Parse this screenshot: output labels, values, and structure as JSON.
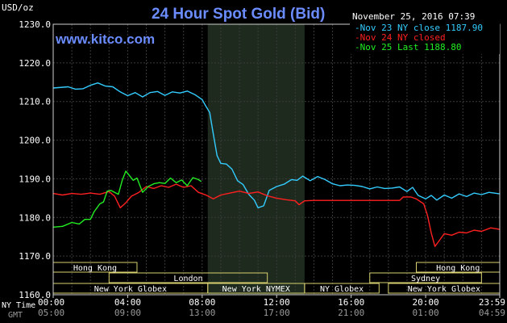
{
  "chart_data": {
    "type": "line",
    "title": "24 Hour Spot Gold (Bid)",
    "watermark": "www.kitco.com",
    "unit_label": "USD/oz",
    "timestamp": "November 25, 2016 07:39",
    "ylim": [
      1160,
      1230
    ],
    "yticks": [
      1160,
      1170,
      1180,
      1190,
      1200,
      1210,
      1220,
      1230
    ],
    "ytick_labels": [
      "1160.0",
      "1170.0",
      "1180.0",
      "1190.0",
      "1200.0",
      "1210.0",
      "1220.0",
      "1230.0"
    ],
    "x_range_hours": [
      0,
      23.98
    ],
    "x_tick_labels_ny": [
      "00:00",
      "04:00",
      "08:00",
      "12:00",
      "16:00",
      "20:00",
      "23:59"
    ],
    "x_tick_labels_gmt": [
      "05:00",
      "09:00",
      "13:00",
      "17:00",
      "21:00",
      "01:00",
      "04:59"
    ],
    "row_label_ny": "NY Time",
    "row_label_gmt": "GMT",
    "grid": true,
    "legend_position": "top-right",
    "shaded_session": [
      8.3,
      13.5
    ],
    "sessions": [
      {
        "label": "Hong Kong",
        "row": 0,
        "start": 0,
        "end": 4.5
      },
      {
        "label": "Hong Kong",
        "row": 0,
        "start": 19.5,
        "end": 23.98
      },
      {
        "label": "London",
        "row": 1,
        "start": 3.0,
        "end": 11.5
      },
      {
        "label": "Sydney",
        "row": 1,
        "start": 17.0,
        "end": 23.0
      },
      {
        "label": "New York Globex",
        "row": 2,
        "start": 0,
        "end": 8.3
      },
      {
        "label": "New York NYMEX",
        "row": 2,
        "start": 8.3,
        "end": 13.5
      },
      {
        "label": "NY Globex",
        "row": 2,
        "start": 13.5,
        "end": 17.5
      },
      {
        "label": "New York Globex",
        "row": 2,
        "start": 18.0,
        "end": 23.98
      }
    ],
    "series": [
      {
        "name": "Nov 23 NY close 1187.90",
        "color": "#33ccff",
        "points": [
          [
            0,
            1213.5
          ],
          [
            0.8,
            1213.8
          ],
          [
            1.2,
            1213.2
          ],
          [
            1.6,
            1213.3
          ],
          [
            2.0,
            1214.2
          ],
          [
            2.4,
            1214.8
          ],
          [
            2.8,
            1214.0
          ],
          [
            3.2,
            1213.8
          ],
          [
            3.6,
            1212.5
          ],
          [
            4.0,
            1211.5
          ],
          [
            4.4,
            1212.3
          ],
          [
            4.8,
            1211.2
          ],
          [
            5.2,
            1212.3
          ],
          [
            5.6,
            1212.6
          ],
          [
            6.0,
            1211.6
          ],
          [
            6.4,
            1212.5
          ],
          [
            6.8,
            1212.2
          ],
          [
            7.2,
            1212.7
          ],
          [
            7.6,
            1211.8
          ],
          [
            8.0,
            1210.5
          ],
          [
            8.2,
            1208.8
          ],
          [
            8.4,
            1207.2
          ],
          [
            8.6,
            1201.5
          ],
          [
            8.8,
            1196.0
          ],
          [
            9.0,
            1194.0
          ],
          [
            9.3,
            1193.8
          ],
          [
            9.6,
            1192.5
          ],
          [
            9.9,
            1189.5
          ],
          [
            10.2,
            1188.5
          ],
          [
            10.5,
            1186.0
          ],
          [
            10.8,
            1184.5
          ],
          [
            11.0,
            1182.5
          ],
          [
            11.3,
            1183.0
          ],
          [
            11.6,
            1187.0
          ],
          [
            12.0,
            1188.0
          ],
          [
            12.4,
            1188.6
          ],
          [
            12.8,
            1189.8
          ],
          [
            13.1,
            1189.6
          ],
          [
            13.4,
            1190.7
          ],
          [
            13.8,
            1189.5
          ],
          [
            14.2,
            1190.6
          ],
          [
            14.6,
            1189.8
          ],
          [
            15.0,
            1188.7
          ],
          [
            15.4,
            1188.2
          ],
          [
            15.8,
            1188.4
          ],
          [
            16.2,
            1188.3
          ],
          [
            16.6,
            1188.0
          ],
          [
            17.0,
            1187.4
          ],
          [
            17.4,
            1187.9
          ],
          [
            17.8,
            1187.5
          ],
          [
            18.2,
            1187.6
          ],
          [
            18.6,
            1187.9
          ],
          [
            19.0,
            1186.7
          ],
          [
            19.3,
            1187.8
          ],
          [
            19.6,
            1185.7
          ],
          [
            20.0,
            1184.8
          ],
          [
            20.3,
            1185.7
          ],
          [
            20.6,
            1184.5
          ],
          [
            21.0,
            1185.8
          ],
          [
            21.4,
            1185.0
          ],
          [
            21.8,
            1186.1
          ],
          [
            22.2,
            1185.4
          ],
          [
            22.6,
            1186.3
          ],
          [
            23.0,
            1185.9
          ],
          [
            23.4,
            1186.5
          ],
          [
            23.98,
            1186.1
          ]
        ]
      },
      {
        "name": "Nov 24 NY closed",
        "color": "#ff2020",
        "points": [
          [
            0,
            1186.2
          ],
          [
            0.5,
            1185.8
          ],
          [
            1.0,
            1186.2
          ],
          [
            1.5,
            1186.0
          ],
          [
            2.0,
            1186.3
          ],
          [
            2.5,
            1186.0
          ],
          [
            3.0,
            1186.7
          ],
          [
            3.3,
            1185.5
          ],
          [
            3.6,
            1182.5
          ],
          [
            3.9,
            1183.8
          ],
          [
            4.2,
            1185.5
          ],
          [
            4.6,
            1186.5
          ],
          [
            5.0,
            1188.0
          ],
          [
            5.4,
            1187.5
          ],
          [
            5.8,
            1188.2
          ],
          [
            6.2,
            1187.8
          ],
          [
            6.6,
            1188.6
          ],
          [
            7.0,
            1187.8
          ],
          [
            7.4,
            1188.2
          ],
          [
            7.8,
            1186.5
          ],
          [
            8.2,
            1185.8
          ],
          [
            8.6,
            1184.8
          ],
          [
            9.0,
            1185.8
          ],
          [
            9.5,
            1186.3
          ],
          [
            10.0,
            1186.8
          ],
          [
            10.5,
            1186.2
          ],
          [
            11.0,
            1186.6
          ],
          [
            11.5,
            1185.6
          ],
          [
            12.0,
            1185.0
          ],
          [
            12.5,
            1184.6
          ],
          [
            13.0,
            1184.3
          ],
          [
            13.2,
            1183.3
          ],
          [
            13.5,
            1184.3
          ],
          [
            14.0,
            1184.4
          ],
          [
            15.0,
            1184.4
          ],
          [
            16.0,
            1184.4
          ],
          [
            17.0,
            1184.4
          ],
          [
            18.0,
            1184.4
          ],
          [
            18.6,
            1184.4
          ],
          [
            18.8,
            1185.3
          ],
          [
            19.2,
            1185.3
          ],
          [
            19.5,
            1184.8
          ],
          [
            19.9,
            1183.5
          ],
          [
            20.1,
            1180.5
          ],
          [
            20.3,
            1176.0
          ],
          [
            20.5,
            1172.5
          ],
          [
            20.7,
            1173.8
          ],
          [
            21.0,
            1175.8
          ],
          [
            21.4,
            1175.4
          ],
          [
            21.8,
            1176.2
          ],
          [
            22.2,
            1176.0
          ],
          [
            22.6,
            1176.7
          ],
          [
            23.0,
            1176.4
          ],
          [
            23.5,
            1177.3
          ],
          [
            23.98,
            1176.9
          ]
        ]
      },
      {
        "name": "Nov 25 Last 1188.80",
        "color": "#22ee22",
        "points": [
          [
            0,
            1177.5
          ],
          [
            0.5,
            1177.7
          ],
          [
            1.0,
            1178.7
          ],
          [
            1.4,
            1178.3
          ],
          [
            1.7,
            1179.5
          ],
          [
            2.0,
            1179.5
          ],
          [
            2.2,
            1181.5
          ],
          [
            2.5,
            1183.5
          ],
          [
            2.7,
            1184.0
          ],
          [
            2.9,
            1186.8
          ],
          [
            3.1,
            1187.0
          ],
          [
            3.3,
            1186.5
          ],
          [
            3.5,
            1186.0
          ],
          [
            3.7,
            1189.5
          ],
          [
            3.9,
            1192.0
          ],
          [
            4.1,
            1190.8
          ],
          [
            4.3,
            1189.6
          ],
          [
            4.5,
            1190.2
          ],
          [
            4.8,
            1186.5
          ],
          [
            5.1,
            1188.0
          ],
          [
            5.4,
            1188.7
          ],
          [
            5.7,
            1189.0
          ],
          [
            6.0,
            1188.8
          ],
          [
            6.3,
            1190.2
          ],
          [
            6.6,
            1189.0
          ],
          [
            6.9,
            1189.7
          ],
          [
            7.2,
            1188.2
          ],
          [
            7.5,
            1190.3
          ],
          [
            7.8,
            1189.8
          ],
          [
            7.95,
            1189.3
          ]
        ]
      }
    ]
  }
}
